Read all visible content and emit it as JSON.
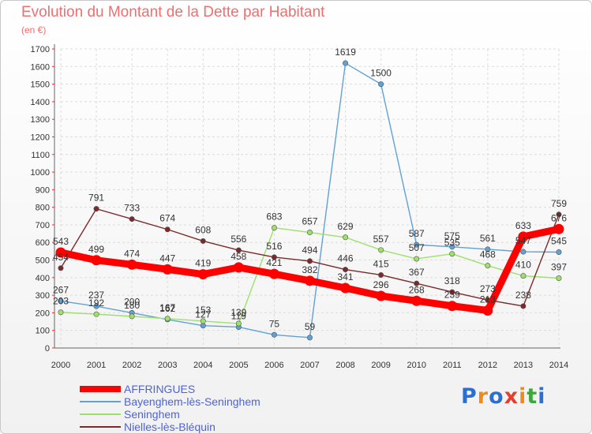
{
  "title": "Evolution du Montant de la Dette par Habitant",
  "unit_label": "(en €)",
  "logo": {
    "text": "Proxiti",
    "letter_colors": [
      "#2a6fd1",
      "#f08a1c",
      "#2a6fd1",
      "#e63e2e",
      "#f08a1c",
      "#3aa83a",
      "#2a6fd1"
    ]
  },
  "chart_data": {
    "type": "line",
    "x": [
      "2000",
      "2001",
      "2002",
      "2003",
      "2004",
      "2005",
      "2006",
      "2007",
      "2008",
      "2009",
      "2010",
      "2011",
      "2012",
      "2013",
      "2014"
    ],
    "ylim": [
      0,
      1700
    ],
    "yticks": [
      0,
      100,
      200,
      300,
      400,
      500,
      600,
      700,
      800,
      900,
      1000,
      1100,
      1200,
      1300,
      1400,
      1500,
      1600,
      1700
    ],
    "grid": true,
    "legend_position": "bottom-left",
    "series": [
      {
        "name": "AFFRINGUES",
        "color": "#ff0000",
        "emphasis": true,
        "values": [
          543,
          499,
          474,
          447,
          419,
          458,
          421,
          382,
          341,
          296,
          268,
          239,
          213,
          633,
          676
        ]
      },
      {
        "name": "Bayenghem-lès-Seninghem",
        "color": "#5fa2d6",
        "values": [
          267,
          237,
          200,
          162,
          127,
          119,
          75,
          59,
          1619,
          1500,
          587,
          575,
          561,
          547,
          545
        ]
      },
      {
        "name": "Seninghem",
        "color": "#9ee06b",
        "values": [
          203,
          192,
          180,
          167,
          153,
          139,
          683,
          657,
          629,
          557,
          507,
          535,
          468,
          410,
          397
        ]
      },
      {
        "name": "Nielles-lès-Bléquin",
        "color": "#7a2a2a",
        "values": [
          454,
          791,
          733,
          674,
          608,
          556,
          516,
          494,
          446,
          415,
          367,
          318,
          273,
          238,
          759
        ]
      }
    ]
  }
}
